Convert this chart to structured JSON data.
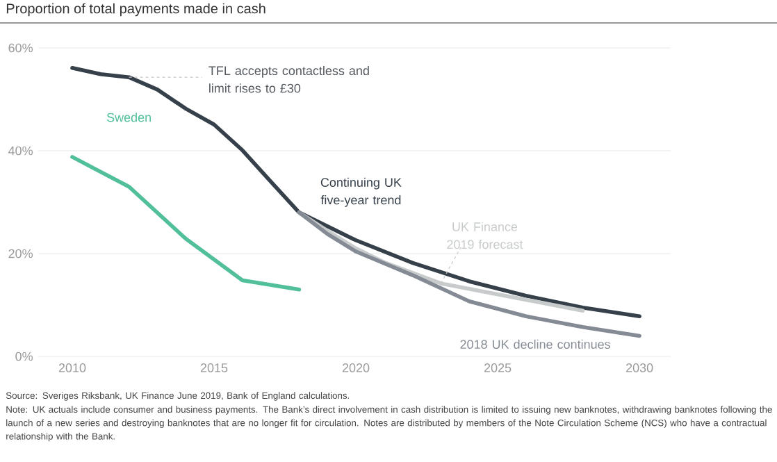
{
  "chart_data": {
    "type": "line",
    "title": "Proportion of total payments made in cash",
    "xlim": [
      2008.8,
      2031.1
    ],
    "ylim": [
      0,
      60
    ],
    "xticks": [
      2010,
      2015,
      2020,
      2025,
      2030
    ],
    "yticks": [
      {
        "value": 0,
        "label": "0%"
      },
      {
        "value": 20,
        "label": "20%"
      },
      {
        "value": 40,
        "label": "40%"
      },
      {
        "value": 60,
        "label": "60%"
      }
    ],
    "grid": "y",
    "series": [
      {
        "name": "Sweden",
        "color": "#52bf9b",
        "x": [
          2010,
          2012,
          2014,
          2016,
          2018
        ],
        "values": [
          38.8,
          33.0,
          22.9,
          14.8,
          13.0
        ]
      },
      {
        "name": "Continuing UK five-year trend",
        "color": "#36404a",
        "x": [
          2010,
          2011,
          2012,
          2013,
          2014,
          2015,
          2016,
          2017,
          2018,
          2019,
          2020,
          2022,
          2024,
          2026,
          2028,
          2030
        ],
        "values": [
          56.1,
          54.9,
          54.3,
          51.9,
          48.2,
          45.1,
          40.1,
          34.0,
          28.0,
          25.3,
          22.6,
          18.2,
          14.6,
          11.8,
          9.5,
          7.8
        ]
      },
      {
        "name": "UK Finance 2019 forecast",
        "color": "#c8cbcc",
        "x": [
          2018,
          2019,
          2020,
          2021,
          2023,
          2028
        ],
        "values": [
          28.0,
          24.4,
          21.0,
          18.3,
          14.2,
          8.9
        ]
      },
      {
        "name": "2018 UK decline continues",
        "color": "#858b94",
        "x": [
          2018,
          2019,
          2020,
          2022,
          2024,
          2026,
          2028,
          2030
        ],
        "values": [
          28.0,
          23.8,
          20.4,
          15.8,
          10.7,
          7.8,
          5.7,
          4.0
        ]
      }
    ],
    "annotations": [
      {
        "text": "TFL accepts contactless and limit rises to £30",
        "x": 2012,
        "y": 54.3
      },
      "Source: Sveriges Riksbank, UK Finance June 2019, Bank of England calculations.",
      "Note: UK actuals include consumer and business payments. The Bank’s direct involvement in cash distribution is limited to issuing new banknotes, withdrawing banknotes following the launch of a new series and destroying banknotes that are no longer fit for circulation. Notes are distributed by members of the Note Circulation Scheme (NCS) who have a contractual relationship with the Bank."
    ]
  }
}
